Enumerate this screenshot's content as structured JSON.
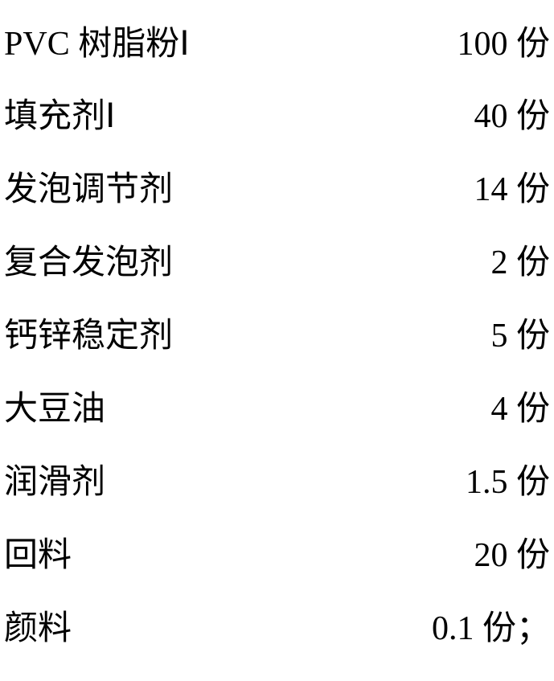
{
  "table": {
    "type": "table",
    "background_color": "#ffffff",
    "text_color": "#000000",
    "font_family_cjk": "SimSun",
    "font_family_latin": "Times New Roman",
    "fontsize": 42,
    "rows": [
      {
        "label_prefix": "PVC",
        "label": " 树脂粉Ⅰ",
        "value": "100 份"
      },
      {
        "label_prefix": "",
        "label": "填充剂Ⅰ",
        "value": "40 份"
      },
      {
        "label_prefix": "",
        "label": "发泡调节剂",
        "value": "14 份"
      },
      {
        "label_prefix": "",
        "label": "复合发泡剂",
        "value": "2 份"
      },
      {
        "label_prefix": "",
        "label": "钙锌稳定剂",
        "value": "5 份"
      },
      {
        "label_prefix": "",
        "label": "大豆油",
        "value": "4 份"
      },
      {
        "label_prefix": "",
        "label": "润滑剂",
        "value": "1.5 份"
      },
      {
        "label_prefix": "",
        "label": "回料",
        "value": "20 份"
      },
      {
        "label_prefix": "",
        "label": "颜料",
        "value": "0.1 份；"
      }
    ]
  }
}
